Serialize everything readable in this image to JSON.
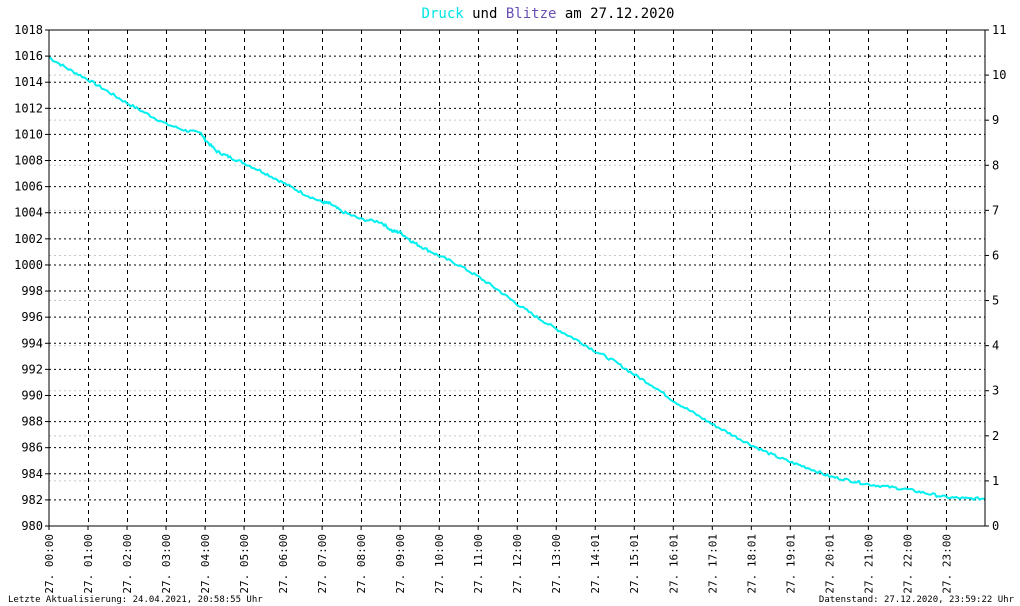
{
  "chart_data": {
    "type": "line",
    "title_parts": [
      {
        "text": "Druck",
        "color": "#00e5e5"
      },
      {
        "text": " und ",
        "color": "#000000"
      },
      {
        "text": "Blitze",
        "color": "#6a4fb5"
      },
      {
        "text": " am 27.12.2020",
        "color": "#000000"
      }
    ],
    "y_left": {
      "min": 980,
      "max": 1018,
      "step": 2,
      "ticks": [
        "980",
        "982",
        "984",
        "986",
        "988",
        "990",
        "992",
        "994",
        "996",
        "998",
        "1000",
        "1002",
        "1004",
        "1006",
        "1008",
        "1010",
        "1012",
        "1014",
        "1016",
        "1018"
      ]
    },
    "y_right": {
      "min": 0,
      "max": 11,
      "step": 1,
      "ticks": [
        "0",
        "1",
        "2",
        "3",
        "4",
        "5",
        "6",
        "7",
        "8",
        "9",
        "10",
        "11"
      ]
    },
    "x_ticks": [
      "27. 00:00",
      "27. 01:00",
      "27. 02:00",
      "27. 03:00",
      "27. 04:00",
      "27. 05:00",
      "27. 06:00",
      "27. 07:00",
      "27. 08:00",
      "27. 09:00",
      "27. 10:00",
      "27. 11:00",
      "27. 12:00",
      "27. 13:00",
      "27. 14:01",
      "27. 15:01",
      "27. 16:01",
      "27. 17:01",
      "27. 18:01",
      "27. 19:01",
      "27. 20:01",
      "27. 21:00",
      "27. 22:00",
      "27. 23:00"
    ],
    "x_range_hours": [
      0,
      23.99
    ],
    "series": [
      {
        "name": "Druck",
        "color": "#00f0f0",
        "x": [
          0,
          0.5,
          1,
          1.5,
          2,
          2.5,
          3,
          3.5,
          3.9,
          4.0,
          4.3,
          4.6,
          5,
          5.5,
          6,
          6.5,
          7,
          7.2,
          7.5,
          8,
          8.5,
          8.8,
          9,
          9.3,
          9.6,
          10,
          10.5,
          11,
          11.5,
          12,
          12.5,
          13,
          13.5,
          14,
          14.5,
          15,
          15.5,
          16,
          16.5,
          17,
          17.5,
          18,
          18.5,
          19,
          19.5,
          20,
          20.5,
          21,
          21.5,
          22,
          22.5,
          23,
          23.5,
          24
        ],
        "y": [
          1015.9,
          1015,
          1014.2,
          1013.3,
          1012.4,
          1011.6,
          1010.8,
          1010.3,
          1010.1,
          1009.6,
          1008.7,
          1008.3,
          1007.8,
          1007.1,
          1006.3,
          1005.5,
          1004.8,
          1004.7,
          1004.1,
          1003.5,
          1003.3,
          1002.6,
          1002.5,
          1001.8,
          1001.3,
          1000.7,
          1000.0,
          999.1,
          998.1,
          997.0,
          996.0,
          995.1,
          994.3,
          993.4,
          992.6,
          991.6,
          990.7,
          989.6,
          988.7,
          987.8,
          987.0,
          986.2,
          985.5,
          984.9,
          984.4,
          983.8,
          983.5,
          983.2,
          983.0,
          982.8,
          982.5,
          982.2,
          982.1,
          982.1
        ]
      }
    ]
  },
  "footer": {
    "left": "Letzte Aktualisierung: 24.04.2021, 20:58:55 Uhr",
    "right": "Datenstand: 27.12.2020, 23:59:22 Uhr"
  }
}
